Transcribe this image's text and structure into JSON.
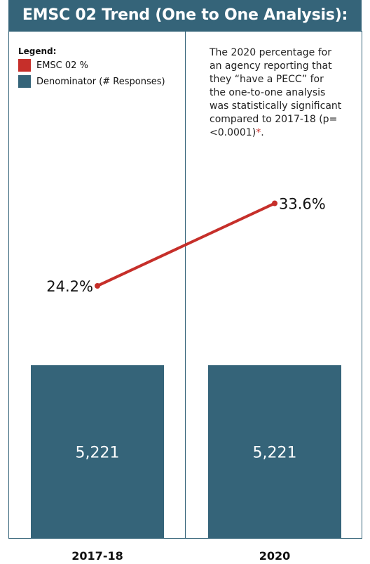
{
  "header": {
    "title": "EMSC 02 Trend (One to One Analysis):"
  },
  "legend": {
    "title": "Legend:",
    "items": [
      {
        "label": "EMSC 02 %",
        "color": "#c62f2a"
      },
      {
        "label": "Denominator (# Responses)",
        "color": "#356479"
      }
    ]
  },
  "annotation": {
    "text": "The 2020 percentage for an agency reporting that they “have a PECC” for the one-to-one analysis was statistically significant compared to 2017-18 (p=<0.0001)",
    "marker": "*",
    "suffix": "."
  },
  "chart_data": {
    "type": "bar",
    "categories": [
      "2017-18",
      "2020"
    ],
    "series": [
      {
        "name": "Denominator (# Responses)",
        "type": "bar",
        "values": [
          5221,
          5221
        ],
        "data_labels": [
          "5,221",
          "5,221"
        ],
        "color": "#356479"
      },
      {
        "name": "EMSC 02 %",
        "type": "line",
        "values": [
          24.2,
          33.6
        ],
        "data_labels": [
          "24.2%",
          "33.6%"
        ],
        "color": "#c62f2a"
      }
    ]
  }
}
